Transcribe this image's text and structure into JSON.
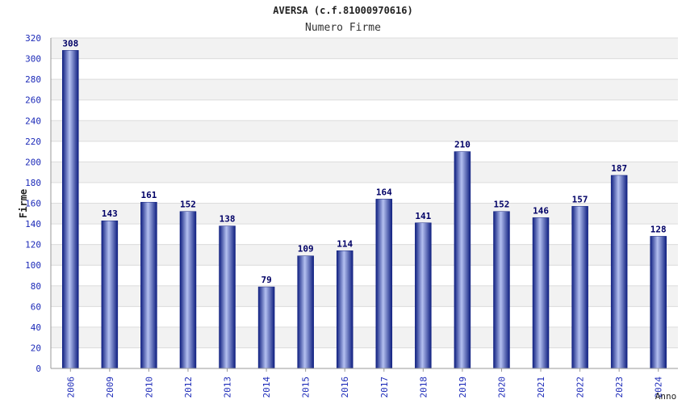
{
  "chart_data": {
    "type": "bar",
    "title": "AVERSA (c.f.81000970616)",
    "subtitle": "Numero Firme",
    "xlabel": "Anno",
    "ylabel": "Firme",
    "categories": [
      "2006",
      "2009",
      "2010",
      "2012",
      "2013",
      "2014",
      "2015",
      "2016",
      "2017",
      "2018",
      "2019",
      "2020",
      "2021",
      "2022",
      "2023",
      "2024"
    ],
    "values": [
      308,
      143,
      161,
      152,
      138,
      79,
      109,
      114,
      164,
      141,
      210,
      152,
      146,
      157,
      187,
      128
    ],
    "ylim": [
      0,
      320
    ],
    "yticks": [
      0,
      20,
      40,
      60,
      80,
      100,
      120,
      140,
      160,
      180,
      200,
      220,
      240,
      260,
      280,
      300,
      320
    ],
    "grid": true,
    "colors": {
      "bar_dark": "#0f1f80",
      "bar_light": "#b4c0f0",
      "axis_text": "#1c2ab8",
      "value_label": "#000066",
      "band_light": "#f2f2f2",
      "band_white": "#ffffff"
    }
  }
}
